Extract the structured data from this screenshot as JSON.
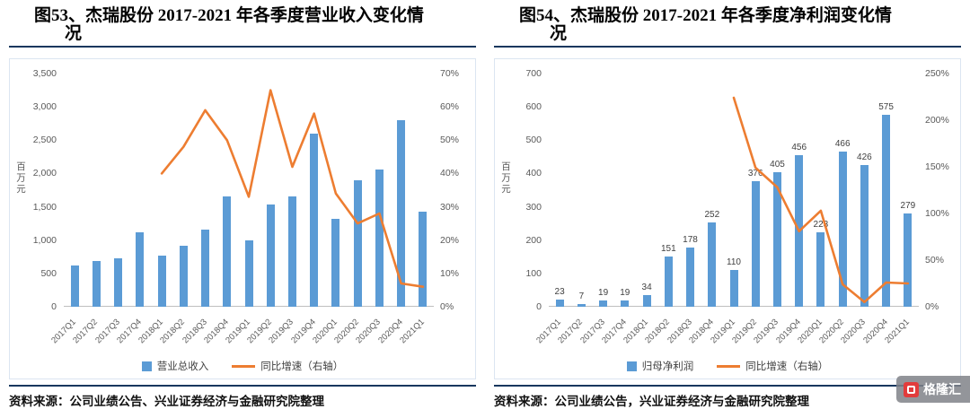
{
  "page": {
    "accent_navy": "#17375e",
    "bar_color": "#5b9bd5",
    "line_color": "#ed7d31",
    "background": "#ffffff"
  },
  "figures": [
    {
      "title": "图53、杰瑞股份 2017-2021 年各季度营业收入变化情\n况",
      "source": "资料来源：公司业绩公告、兴业证券经济与金融研究院整理"
    },
    {
      "title": "图54、杰瑞股份 2017-2021 年各季度净利润变化情\n况",
      "source": "资料来源：公司业绩公告，兴业证券经济与金融研究院整理"
    }
  ],
  "watermark": {
    "text": "格隆汇",
    "icon": "gelonghui-logo"
  },
  "chart_data": [
    {
      "type": "bar",
      "combo": "bar+line",
      "title": "图53、杰瑞股份 2017-2021 年各季度营业收入变化情况",
      "ylabel_left": "百万元",
      "ylim_left": [
        0,
        3500
      ],
      "yticks_left": [
        [
          3500,
          "3,500"
        ],
        [
          3000,
          "3,000"
        ],
        [
          2500,
          "2,500"
        ],
        [
          2000,
          "2,000"
        ],
        [
          1500,
          "1,500"
        ],
        [
          1000,
          "1,000"
        ],
        [
          500,
          "500"
        ],
        [
          0,
          "0"
        ]
      ],
      "ylim_right": [
        0,
        0.7
      ],
      "yticks_right": [
        [
          0.7,
          "70%"
        ],
        [
          0.6,
          "60%"
        ],
        [
          0.5,
          "50%"
        ],
        [
          0.4,
          "40%"
        ],
        [
          0.3,
          "30%"
        ],
        [
          0.2,
          "20%"
        ],
        [
          0.1,
          "10%"
        ],
        [
          0,
          "0%"
        ]
      ],
      "categories": [
        "2017Q1",
        "2017Q2",
        "2017Q3",
        "2017Q4",
        "2018Q1",
        "2018Q2",
        "2018Q3",
        "2018Q4",
        "2019Q1",
        "2019Q2",
        "2019Q3",
        "2019Q4",
        "2020Q1",
        "2020Q2",
        "2020Q3",
        "2020Q4",
        "2021Q1"
      ],
      "series": [
        {
          "name": "营业总收入",
          "kind": "bar",
          "axis": "left",
          "color": "#5b9bd5",
          "data_labels": false,
          "values": [
            620,
            690,
            730,
            1120,
            770,
            920,
            1160,
            1660,
            1000,
            1530,
            1650,
            2600,
            1320,
            1900,
            2060,
            2800,
            1430
          ]
        },
        {
          "name": "同比增速（右轴）",
          "kind": "line",
          "axis": "right",
          "color": "#ed7d31",
          "data_labels": false,
          "values": [
            null,
            null,
            null,
            null,
            0.4,
            0.48,
            0.59,
            0.5,
            0.33,
            0.65,
            0.42,
            0.58,
            0.34,
            0.25,
            0.28,
            0.07,
            0.06
          ]
        }
      ],
      "legend_position": "bottom",
      "grid": false
    },
    {
      "type": "bar",
      "combo": "bar+line",
      "title": "图54、杰瑞股份 2017-2021 年各季度净利润变化情况",
      "ylabel_left": "百万元",
      "ylim_left": [
        0,
        700
      ],
      "yticks_left": [
        [
          700,
          "700"
        ],
        [
          600,
          "600"
        ],
        [
          500,
          "500"
        ],
        [
          400,
          "400"
        ],
        [
          300,
          "300"
        ],
        [
          200,
          "200"
        ],
        [
          100,
          "100"
        ],
        [
          0,
          "0"
        ]
      ],
      "ylim_right": [
        0,
        2.5
      ],
      "yticks_right": [
        [
          2.5,
          "250%"
        ],
        [
          2.0,
          "200%"
        ],
        [
          1.5,
          "150%"
        ],
        [
          1.0,
          "100%"
        ],
        [
          0.5,
          "50%"
        ],
        [
          0,
          "0%"
        ]
      ],
      "categories": [
        "2017Q1",
        "2017Q2",
        "2017Q3",
        "2017Q4",
        "2018Q1",
        "2018Q2",
        "2018Q3",
        "2018Q4",
        "2019Q1",
        "2019Q2",
        "2019Q3",
        "2019Q4",
        "2020Q1",
        "2020Q2",
        "2020Q3",
        "2020Q4",
        "2021Q1"
      ],
      "series": [
        {
          "name": "归母净利润",
          "kind": "bar",
          "axis": "left",
          "color": "#5b9bd5",
          "data_labels": true,
          "values": [
            23,
            7,
            19,
            19,
            34,
            151,
            178,
            252,
            110,
            376,
            405,
            456,
            223,
            466,
            426,
            575,
            279
          ]
        },
        {
          "name": "同比增速（右轴）",
          "kind": "line",
          "axis": "right",
          "color": "#ed7d31",
          "data_labels": false,
          "values": [
            null,
            null,
            null,
            null,
            null,
            null,
            null,
            null,
            2.24,
            1.49,
            1.28,
            0.81,
            1.03,
            0.24,
            0.05,
            0.26,
            0.25
          ]
        }
      ],
      "legend_position": "bottom",
      "grid": false
    }
  ]
}
